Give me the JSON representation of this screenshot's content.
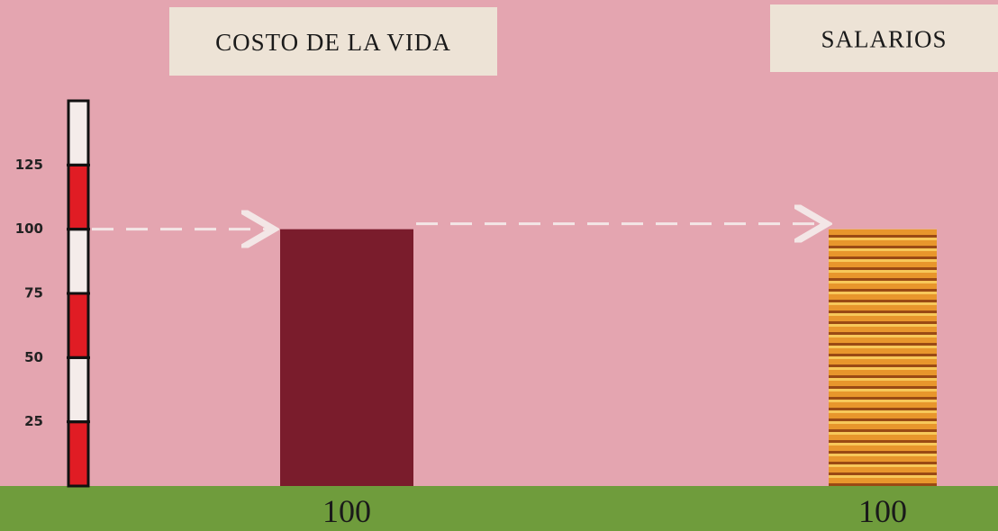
{
  "chart_data": {
    "type": "bar",
    "categories": [
      "COSTO DE LA VIDA",
      "SALARIOS"
    ],
    "values": [
      100,
      100
    ],
    "colors": [
      "#7a1c2c",
      "#e08a26"
    ],
    "ylim": [
      0,
      150
    ],
    "yticks": [
      25,
      50,
      75,
      100,
      125
    ]
  }
}
